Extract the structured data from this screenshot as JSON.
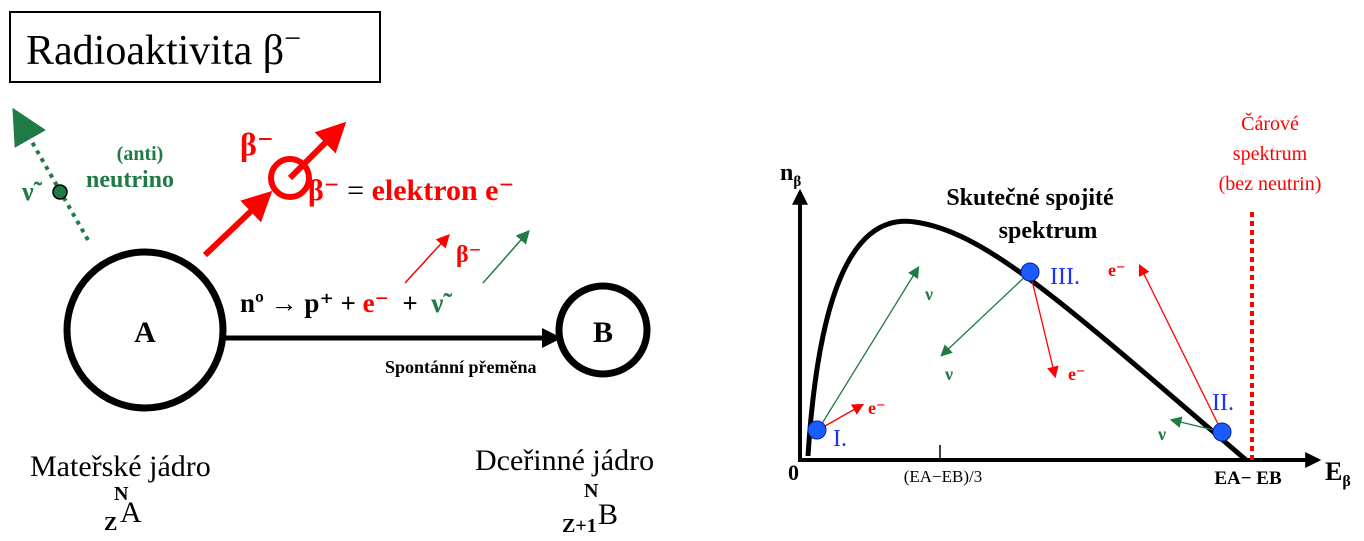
{
  "header": {
    "title": "Radioaktivita β",
    "title_sup": "−"
  },
  "decay": {
    "neutrino_symbol": "ν̃",
    "neutrino_label": [
      "(anti)",
      "neutrino"
    ],
    "beta_symbol": "β⁻",
    "beta_definition": {
      "symbol": "β⁻",
      "equals": " = ",
      "rest": "elektron e⁻"
    },
    "reaction": {
      "left": "nº → p⁺ + ",
      "electron": "e⁻",
      "plus": "  +  ",
      "antineutrino": "ν̃"
    },
    "small_beta": "β⁻",
    "parent": {
      "symbol": "A",
      "caption": "Mateřské jádro",
      "N": "N",
      "Z": "Z",
      "element": "A"
    },
    "daughter": {
      "symbol": "B",
      "caption": "Dceřinné jádro",
      "N": "N",
      "Z": "Z+1",
      "element": "B"
    },
    "arrow_label": "Spontánní přeměna"
  },
  "spectrum": {
    "y_label": "n",
    "y_label_sub": "β",
    "x_label": "E",
    "x_label_sub": "β",
    "origin": "0",
    "tick_label": "(EA−EB)/3",
    "end_label": "EA− EB",
    "line_spectrum": [
      "Čárové",
      "spektrum",
      "(bez neutrin)"
    ],
    "continuous": [
      "Skutečné spojité",
      "spektrum"
    ],
    "points": [
      {
        "label": "I.",
        "electron": "e⁻",
        "neutrino": "ν"
      },
      {
        "label": "II.",
        "electron": "e⁻",
        "neutrino": "ν"
      },
      {
        "label": "III.",
        "electron": "e⁻",
        "neutrino": "ν"
      }
    ]
  }
}
